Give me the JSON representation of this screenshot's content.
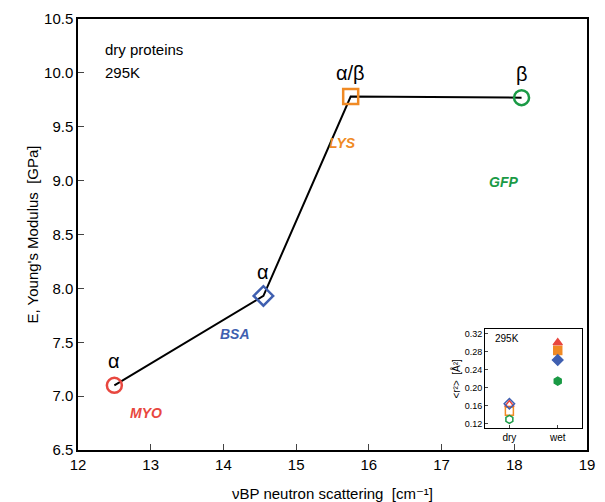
{
  "chart_data": [
    {
      "type": "scatter",
      "xlabel": "νBP neutron scattering  [cm⁻¹]",
      "ylabel": "E, Young's Modulus  [GPa]",
      "annotations": [
        "dry proteins",
        "295K"
      ],
      "color": "#000000",
      "marker": "open",
      "points": [
        {
          "name": "MYO",
          "label": "α",
          "x": 12.5,
          "y": 7.1,
          "color": "#e8473f",
          "marker": "circle"
        },
        {
          "name": "BSA",
          "label": "α",
          "x": 14.55,
          "y": 7.93,
          "color": "#3f5fb0",
          "marker": "diamond"
        },
        {
          "name": "LYS",
          "label": "α/β",
          "x": 15.75,
          "y": 9.78,
          "color": "#f08a24",
          "marker": "square"
        },
        {
          "name": "GFP",
          "label": "β",
          "x": 18.1,
          "y": 9.77,
          "color": "#1a9a45",
          "marker": "circle"
        }
      ],
      "xlim": [
        12,
        19
      ],
      "xticks": [
        12,
        13,
        14,
        15,
        16,
        17,
        18,
        19
      ],
      "ylim": [
        6.5,
        10.5
      ],
      "yticks": [
        6.5,
        {
          "value": 7,
          "label": "7.0"
        },
        7.5,
        {
          "value": 8,
          "label": "8.0"
        },
        8.5,
        {
          "value": 9,
          "label": "9.0"
        },
        9.5,
        {
          "value": 10,
          "label": "10.0"
        },
        10.5
      ]
    },
    {
      "type": "scatter",
      "title": "295K",
      "ylabel": "<r²>  [Å²]",
      "categories": [
        "dry",
        "wet"
      ],
      "series": [
        {
          "color": "#e8473f",
          "marker": "triangle-up",
          "values": [
            0.163,
            0.3
          ]
        },
        {
          "color": "#f08a24",
          "marker": "square",
          "values": [
            0.148,
            0.283
          ]
        },
        {
          "color": "#3f5fb0",
          "marker": "diamond",
          "values": [
            0.165,
            0.262
          ]
        },
        {
          "color": "#1a9a45",
          "marker": "hexagon",
          "values": [
            0.13,
            0.215
          ]
        }
      ],
      "ylim": [
        0.11,
        0.33
      ],
      "yticks": [
        0.12,
        0.16,
        {
          "value": 0.2,
          "label": "0.20"
        },
        0.24,
        0.28,
        0.32
      ]
    }
  ]
}
